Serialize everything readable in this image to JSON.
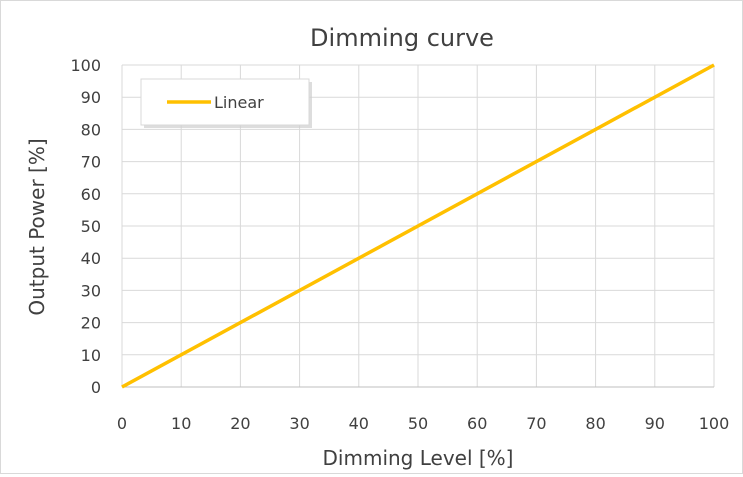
{
  "chart_data": {
    "type": "line",
    "title": "Dimming curve",
    "xlabel": "Dimming Level [%]",
    "ylabel": "Output Power [%]",
    "xlim": [
      0,
      100
    ],
    "ylim": [
      0,
      100
    ],
    "x_ticks": [
      0,
      10,
      20,
      30,
      40,
      50,
      60,
      70,
      80,
      90,
      100
    ],
    "y_ticks": [
      0,
      10,
      20,
      30,
      40,
      50,
      60,
      70,
      80,
      90,
      100
    ],
    "grid": true,
    "legend_position": "top-left",
    "series": [
      {
        "name": "Linear",
        "color": "#FFC000",
        "x": [
          0,
          100
        ],
        "y": [
          0,
          100
        ]
      }
    ]
  }
}
